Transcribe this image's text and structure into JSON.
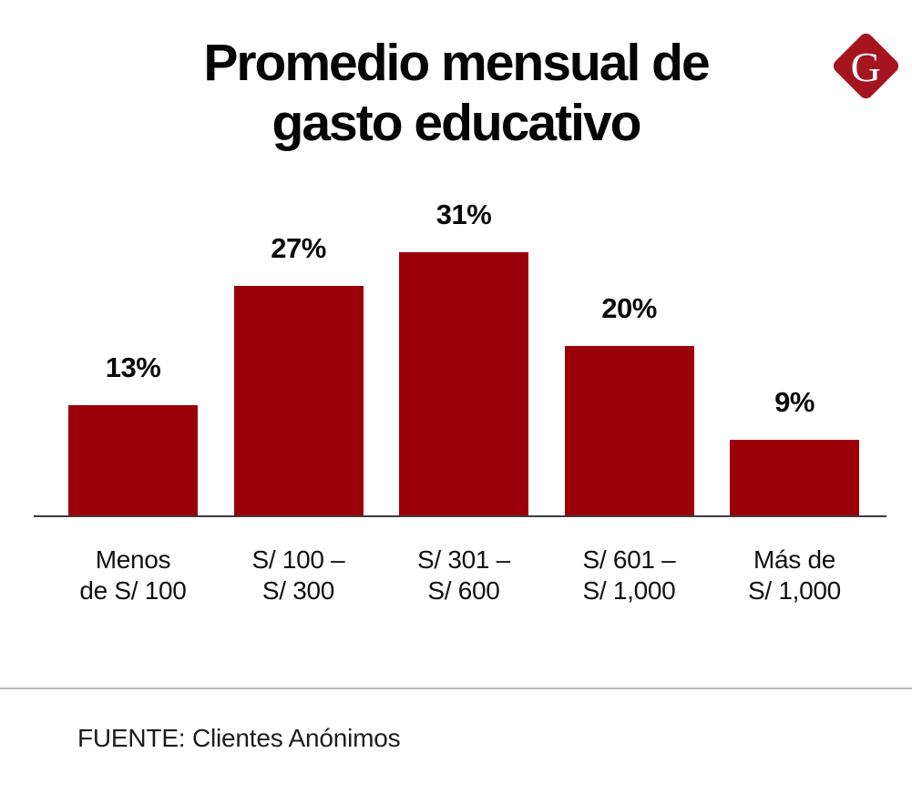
{
  "page": {
    "background": "#ffffff"
  },
  "header": {
    "title_lines": [
      "Promedio mensual de",
      "gasto educativo"
    ],
    "logo": {
      "letter": "G",
      "background": "#a41520",
      "letter_color": "#ffffff"
    }
  },
  "chart_data": {
    "type": "bar",
    "title": "Promedio mensual de gasto educativo",
    "categories": [
      "Menos de S/ 100",
      "S/ 100 – S/ 300",
      "S/ 301 – S/ 600",
      "S/ 601 – S/ 1,000",
      "Más de S/ 1,000"
    ],
    "categories_lines": [
      [
        "Menos",
        "de S/ 100"
      ],
      [
        "S/ 100 –",
        "S/ 300"
      ],
      [
        "S/ 301 –",
        "S/ 600"
      ],
      [
        "S/ 601 –",
        "S/ 1,000"
      ],
      [
        "Más de",
        "S/ 1,000"
      ]
    ],
    "values": [
      13,
      27,
      31,
      20,
      9
    ],
    "value_labels": [
      "13%",
      "27%",
      "31%",
      "20%",
      "9%"
    ],
    "unit": "%",
    "ylim": [
      0,
      31
    ],
    "grid": false,
    "legend": "none",
    "bar_color": "#9b0009",
    "axis_color": "#3c3c3c"
  },
  "footer": {
    "divider_color": "#b9b9b9",
    "source": "FUENTE: Clientes Anónimos"
  }
}
